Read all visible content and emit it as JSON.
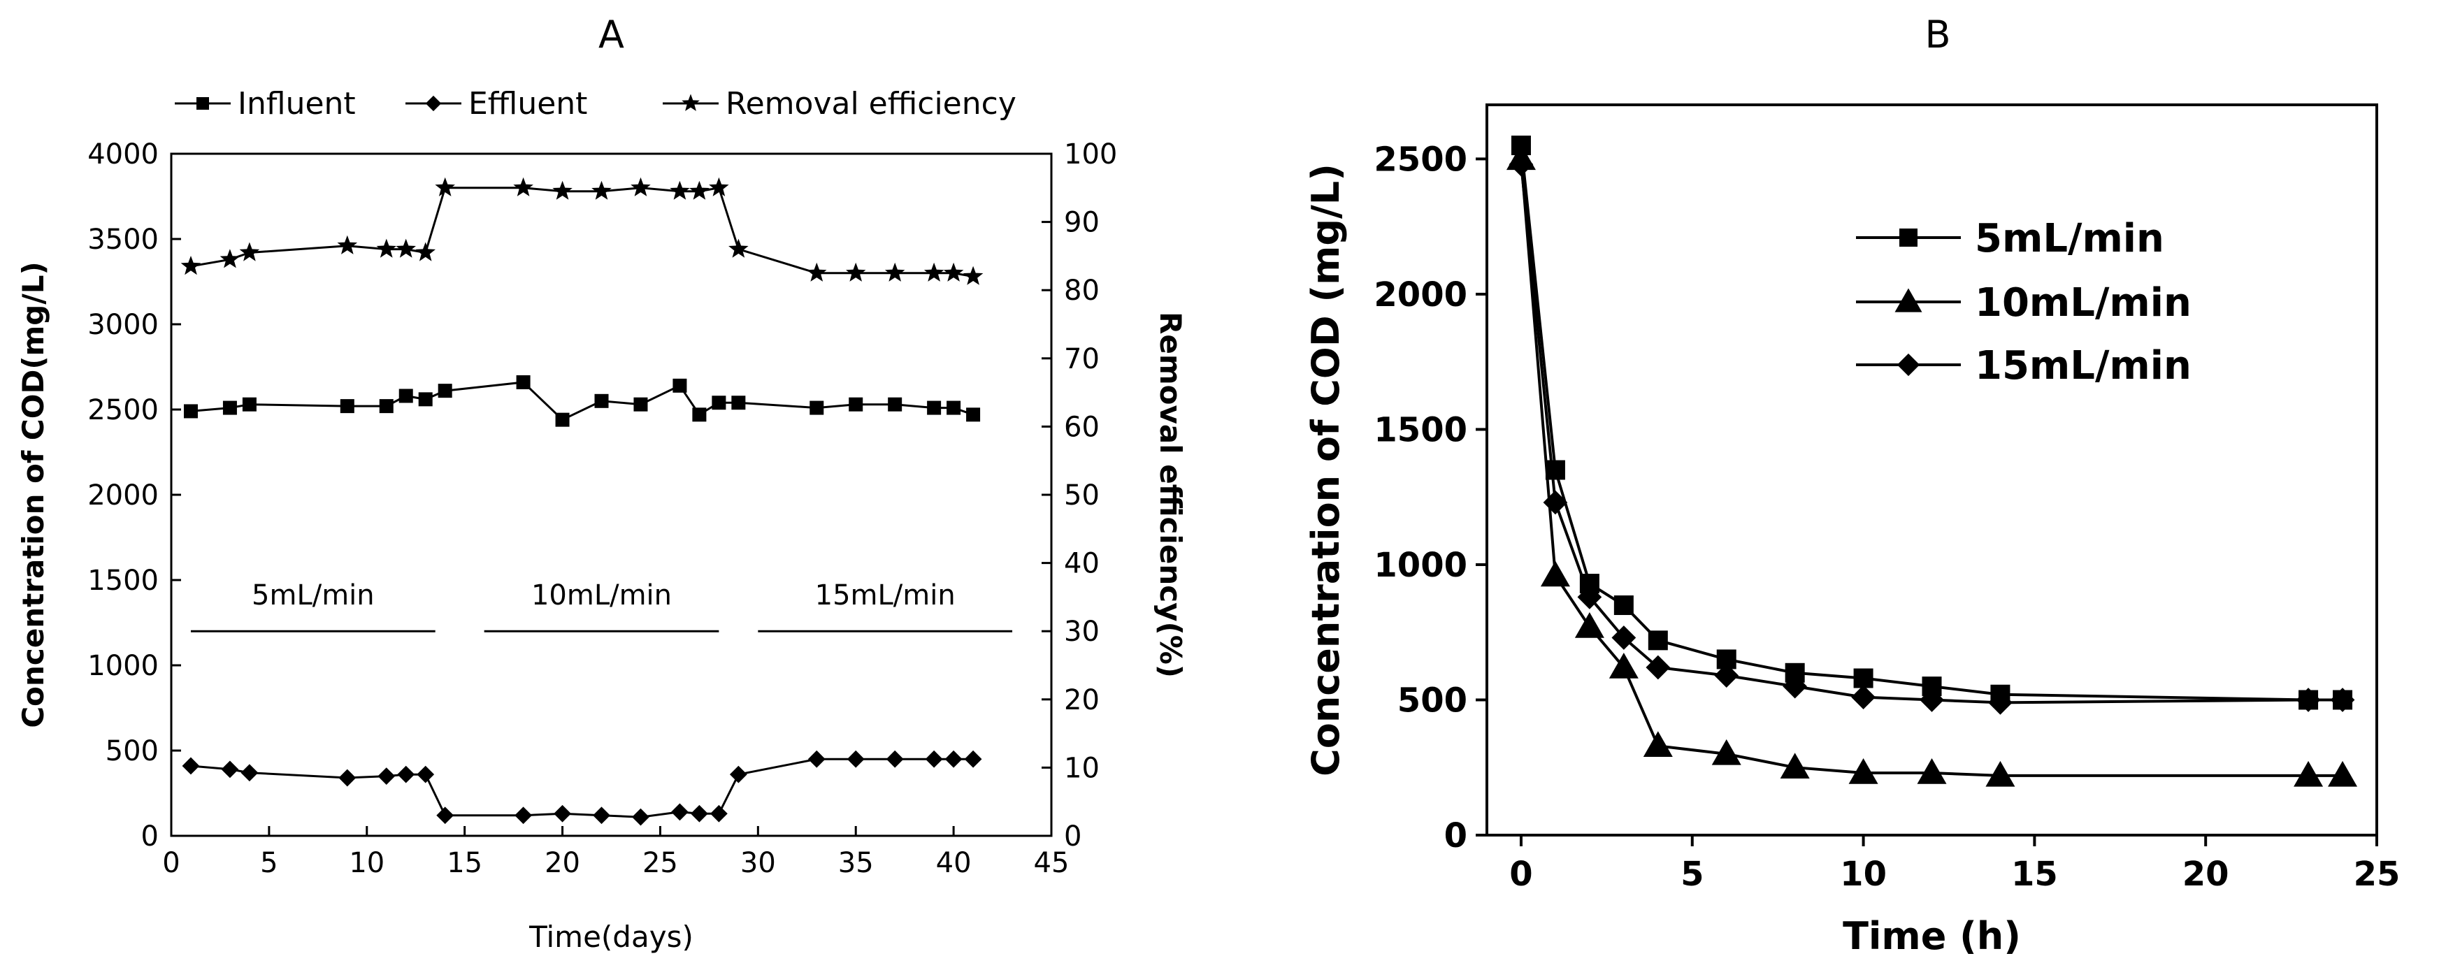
{
  "figure": {
    "panels": [
      "A",
      "B"
    ]
  },
  "chart_data": [
    {
      "panel": "A",
      "type": "line",
      "title": "A",
      "xlabel": "Time(days)",
      "ylabel": "Concentration of COD(mg/L)",
      "y2label": "Removal efficiency(%)",
      "xlim": [
        0,
        45
      ],
      "ylim": [
        0,
        4000
      ],
      "y2lim": [
        0,
        100
      ],
      "xticks": [
        0,
        5,
        10,
        15,
        20,
        25,
        30,
        35,
        40,
        45
      ],
      "xtick_labels": [
        "0",
        "5",
        "10",
        "15",
        "20",
        "25",
        "30",
        "35",
        "40",
        "45"
      ],
      "yticks": [
        0,
        500,
        1000,
        1500,
        2000,
        2500,
        3000,
        3500,
        4000
      ],
      "ytick_labels": [
        "0",
        "500",
        "1000",
        "1500",
        "2000",
        "2500",
        "3000",
        "3500",
        "4000"
      ],
      "y2ticks": [
        0,
        10,
        20,
        30,
        40,
        50,
        60,
        70,
        80,
        90,
        100
      ],
      "y2tick_labels": [
        "0",
        "10",
        "20",
        "30",
        "40",
        "50",
        "60",
        "70",
        "80",
        "90",
        "100"
      ],
      "legend_position": "top",
      "series": [
        {
          "name": "Influent",
          "axis": "left",
          "marker": "square",
          "x": [
            1,
            3,
            4,
            9,
            11,
            12,
            13,
            14,
            18,
            20,
            22,
            24,
            26,
            27,
            28,
            29,
            33,
            35,
            37,
            39,
            40,
            41
          ],
          "values": [
            2490,
            2510,
            2530,
            2520,
            2520,
            2580,
            2560,
            2610,
            2660,
            2440,
            2550,
            2530,
            2640,
            2470,
            2540,
            2540,
            2510,
            2530,
            2530,
            2510,
            2510,
            2470
          ]
        },
        {
          "name": "Effluent",
          "axis": "left",
          "marker": "diamond",
          "x": [
            1,
            3,
            4,
            9,
            11,
            12,
            13,
            14,
            18,
            20,
            22,
            24,
            26,
            27,
            28,
            29,
            33,
            35,
            37,
            39,
            40,
            41
          ],
          "values": [
            410,
            390,
            370,
            340,
            350,
            360,
            360,
            120,
            120,
            130,
            120,
            110,
            140,
            130,
            130,
            360,
            450,
            450,
            450,
            450,
            450,
            450
          ]
        },
        {
          "name": "Removal efficiency",
          "axis": "right",
          "marker": "star",
          "x": [
            1,
            3,
            4,
            9,
            11,
            12,
            13,
            14,
            18,
            20,
            22,
            24,
            26,
            27,
            28,
            29,
            33,
            35,
            37,
            39,
            40,
            41
          ],
          "values": [
            83.5,
            84.5,
            85.5,
            86.5,
            86,
            86,
            85.5,
            95,
            95,
            94.5,
            94.5,
            95,
            94.5,
            94.5,
            95,
            86,
            82.5,
            82.5,
            82.5,
            82.5,
            82.5,
            82
          ]
        }
      ],
      "annotations": [
        {
          "text": "5mL/min",
          "x_range": [
            1,
            13.5
          ],
          "y": 1200
        },
        {
          "text": "10mL/min",
          "x_range": [
            16,
            28
          ],
          "y": 1200
        },
        {
          "text": "15mL/min",
          "x_range": [
            30,
            43
          ],
          "y": 1200
        }
      ]
    },
    {
      "panel": "B",
      "type": "line",
      "title": "B",
      "xlabel": "Time (h)",
      "ylabel": "Concentration of COD (mg/L)",
      "xlim": [
        -1,
        25
      ],
      "ylim": [
        0,
        2700
      ],
      "xticks": [
        0,
        5,
        10,
        15,
        20,
        25
      ],
      "xtick_labels": [
        "0",
        "5",
        "10",
        "15",
        "20",
        "25"
      ],
      "yticks": [
        0,
        500,
        1000,
        1500,
        2000,
        2500
      ],
      "ytick_labels": [
        "0",
        "500",
        "1000",
        "1500",
        "2000",
        "2500"
      ],
      "legend_position": "top-right",
      "series": [
        {
          "name": "5mL/min",
          "marker": "square",
          "x": [
            0,
            1,
            2,
            3,
            4,
            6,
            8,
            10,
            12,
            14,
            23,
            24
          ],
          "values": [
            2550,
            1350,
            930,
            850,
            720,
            650,
            600,
            580,
            550,
            520,
            500,
            500
          ]
        },
        {
          "name": "10mL/min",
          "marker": "triangle",
          "x": [
            0,
            1,
            2,
            3,
            4,
            6,
            8,
            10,
            12,
            14,
            23,
            24
          ],
          "values": [
            2500,
            960,
            770,
            620,
            330,
            300,
            250,
            230,
            230,
            220,
            220,
            220
          ]
        },
        {
          "name": "15mL/min",
          "marker": "diamond",
          "x": [
            0,
            1,
            2,
            3,
            4,
            6,
            8,
            10,
            12,
            14,
            23,
            24
          ],
          "values": [
            2480,
            1230,
            880,
            730,
            620,
            590,
            550,
            510,
            500,
            490,
            500,
            500
          ]
        }
      ]
    }
  ]
}
